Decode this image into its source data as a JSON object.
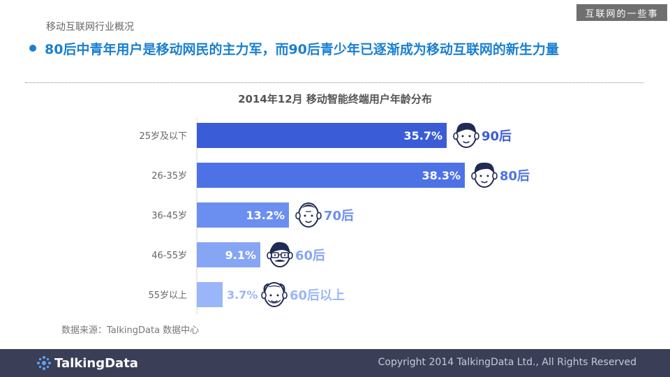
{
  "watermark": "互联网的一些事",
  "section_title": "移动互联网行业概况",
  "headline": "80后中青年用户是移动网民的主力军，而90后青少年已逐渐成为移动互联网的新生力量",
  "colors": {
    "headline": "#1a7fd0",
    "bar_dark": "#3a5cd6",
    "bar_mid": "#4d72e6",
    "bar_light": "#6b8ff0",
    "bar_lighter": "#86a6f5",
    "bar_lightest": "#9bb6f8",
    "footer_bg": "#3b3e57",
    "face_stroke": "#1f2a55"
  },
  "chart_data": {
    "type": "bar",
    "orientation": "horizontal",
    "title": "2014年12月 移动智能终端用户年龄分布",
    "categories": [
      "25岁及以下",
      "26-35岁",
      "36-45岁",
      "46-55岁",
      "55岁以上"
    ],
    "values": [
      35.7,
      38.3,
      13.2,
      9.1,
      3.7
    ],
    "value_labels": [
      "35.7%",
      "38.3%",
      "13.2%",
      "9.1%",
      "3.7%"
    ],
    "generation_labels": [
      "90后",
      "80后",
      "70后",
      "60后",
      "60后以上"
    ],
    "icons": [
      "young-face-icon",
      "adult-face-icon",
      "middle-aged-face-icon",
      "mustache-glasses-face-icon",
      "elder-face-icon"
    ],
    "xlim": [
      0,
      38.3
    ],
    "grid": false,
    "legend": "none"
  },
  "source": "数据来源：TalkingData 数据中心",
  "footer": {
    "logo_text": "TalkingData",
    "copyright": "Copyright 2014 TalkingData Ltd., All Rights Reserved"
  }
}
